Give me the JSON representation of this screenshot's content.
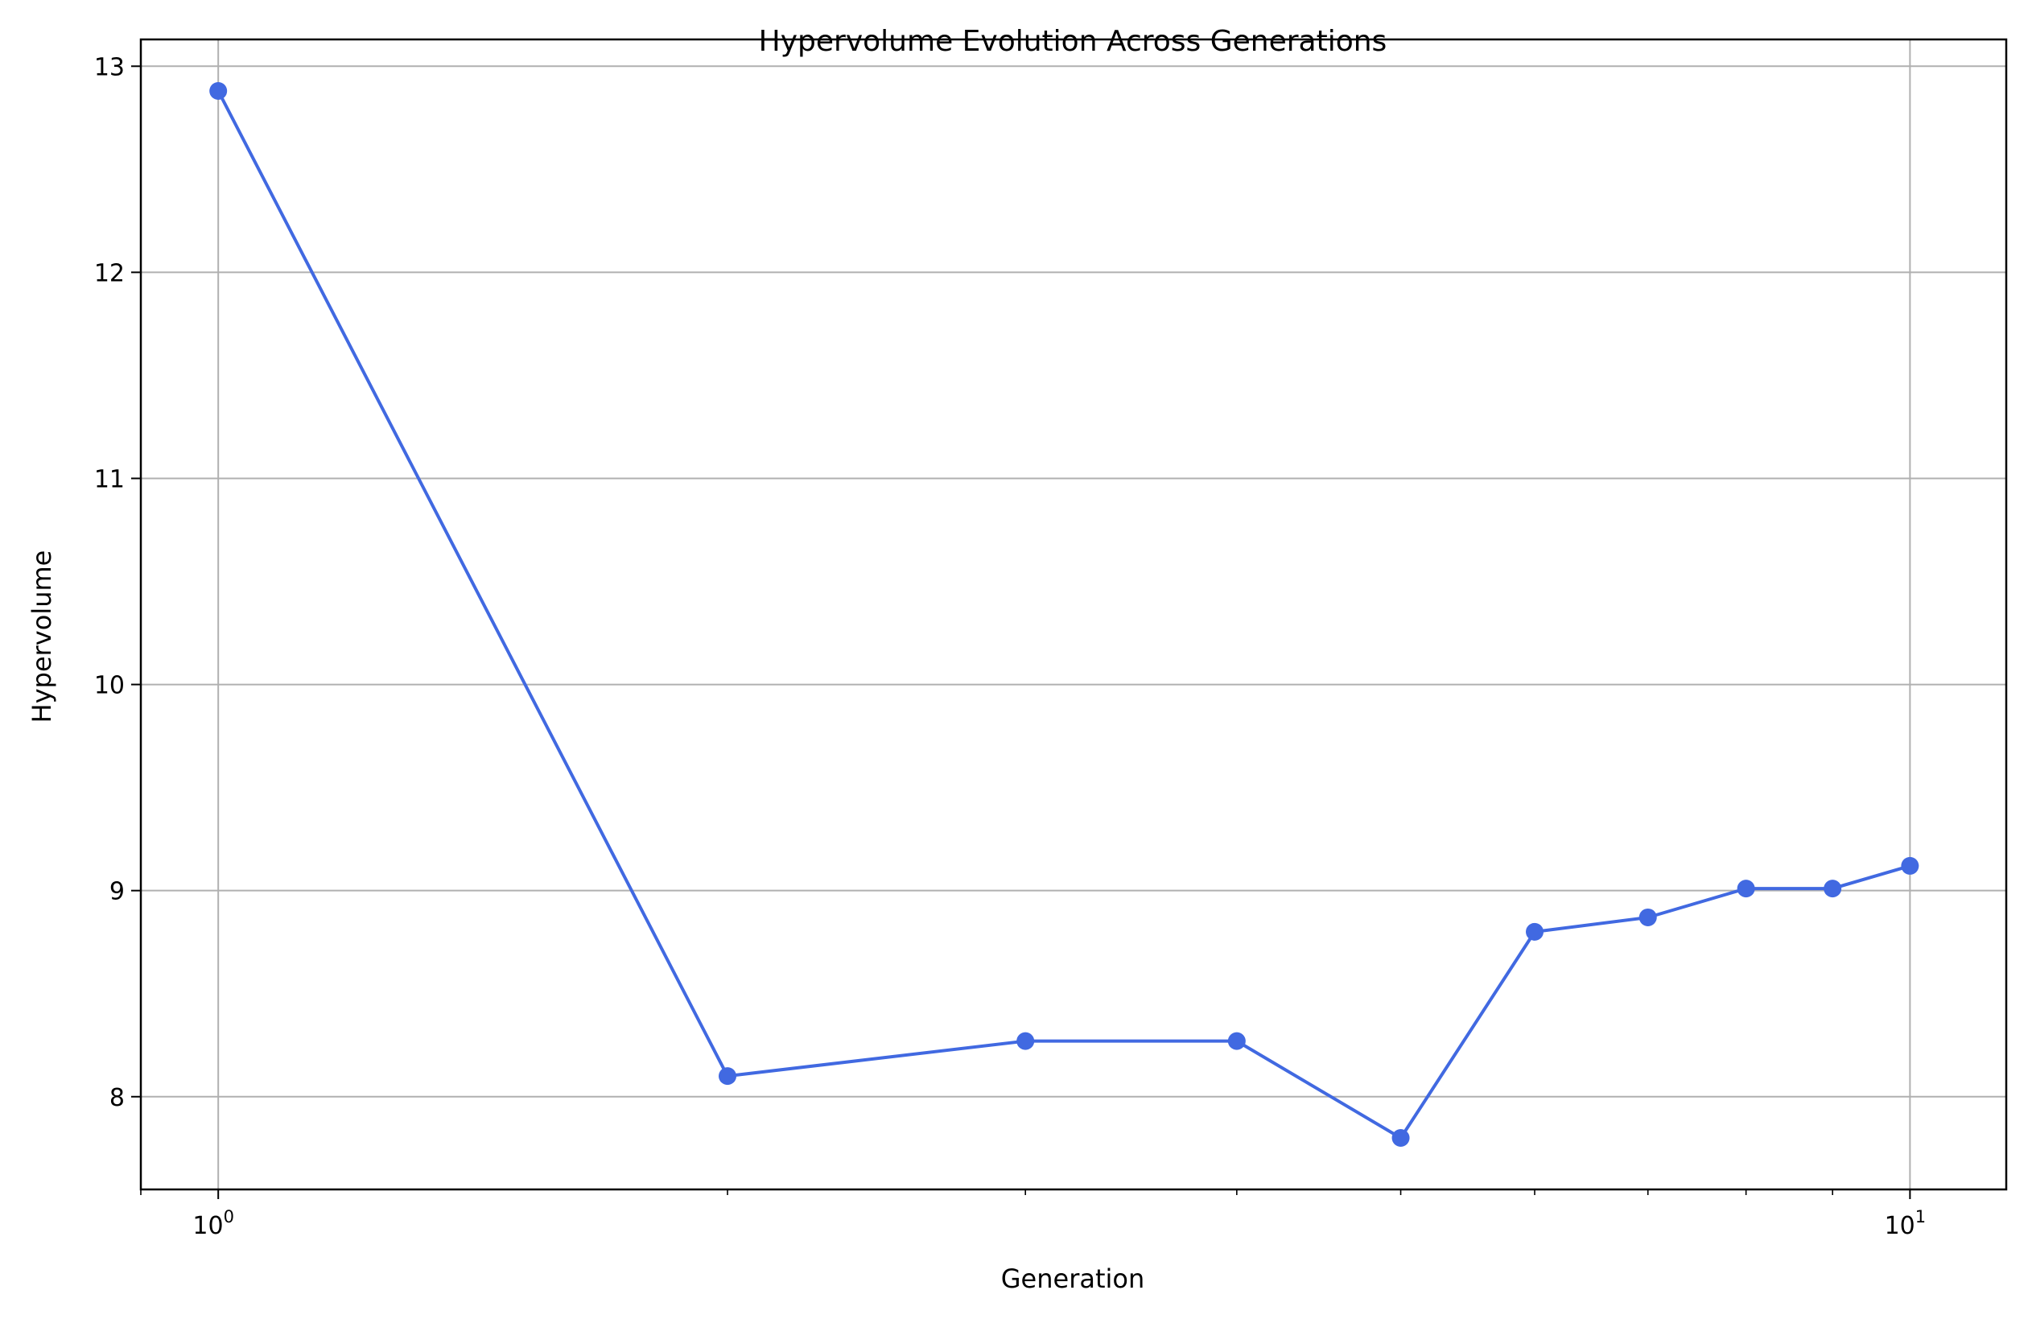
{
  "chart_data": {
    "type": "line",
    "title": "Hypervolume Evolution Across Generations",
    "xlabel": "Generation",
    "ylabel": "Hypervolume",
    "x_scale": "log",
    "xlim": [
      0.9,
      11.4
    ],
    "ylim": [
      7.55,
      13.13
    ],
    "grid": true,
    "line_color": "#4169e1",
    "grid_color": "#b0b0b0",
    "x_ticks": [
      {
        "value": 1,
        "base": "10",
        "exp": "0"
      },
      {
        "value": 10,
        "base": "10",
        "exp": "1"
      }
    ],
    "x_minor_ticks": [
      0.9,
      2,
      3,
      4,
      5,
      6,
      7,
      8,
      9
    ],
    "y_ticks": [
      {
        "value": 8,
        "label": "8"
      },
      {
        "value": 9,
        "label": "9"
      },
      {
        "value": 10,
        "label": "10"
      },
      {
        "value": 11,
        "label": "11"
      },
      {
        "value": 12,
        "label": "12"
      },
      {
        "value": 13,
        "label": "13"
      }
    ],
    "series": [
      {
        "x": [
          1,
          2,
          3,
          4,
          5,
          6,
          7,
          8,
          9,
          10
        ],
        "y": [
          12.88,
          8.1,
          8.27,
          8.27,
          7.8,
          8.8,
          8.87,
          9.01,
          9.01,
          9.12
        ]
      }
    ]
  }
}
